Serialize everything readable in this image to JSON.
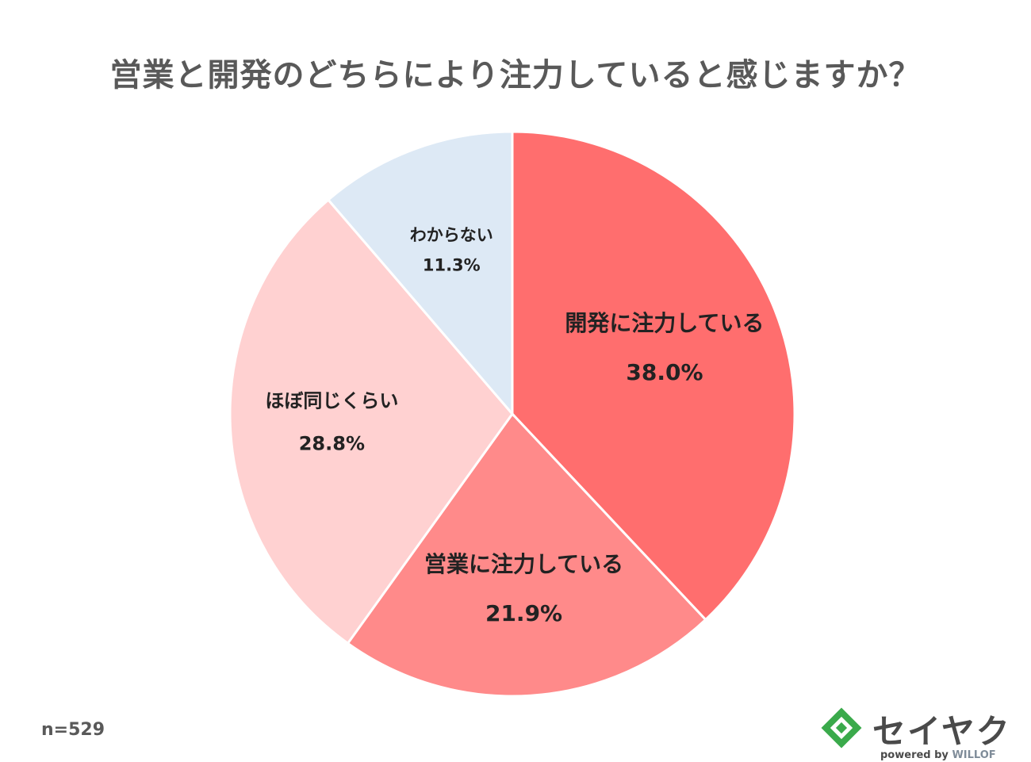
{
  "chart_data": {
    "type": "pie",
    "title": "営業と開発のどちらにより注力していると感じますか？",
    "slices": [
      {
        "label": "開発に注力している",
        "value": 38.0,
        "value_label": "38.0%",
        "color": "#ff6e6e"
      },
      {
        "label": "営業に注力している",
        "value": 21.9,
        "value_label": "21.9%",
        "color": "#ff8a8a"
      },
      {
        "label": "ほぼ同じくらい",
        "value": 28.8,
        "value_label": "28.8%",
        "color": "#ffd1d1"
      },
      {
        "label": "わからない",
        "value": 11.3,
        "value_label": "11.3%",
        "color": "#dde9f5"
      }
    ],
    "start": "12 o'clock",
    "direction": "clockwise"
  },
  "footer": {
    "sample_size": "n=529"
  },
  "logo": {
    "name": "セイヤク",
    "powered_by": "powered by",
    "brand": "WILLOF",
    "accent_color": "#3aaa4b"
  }
}
